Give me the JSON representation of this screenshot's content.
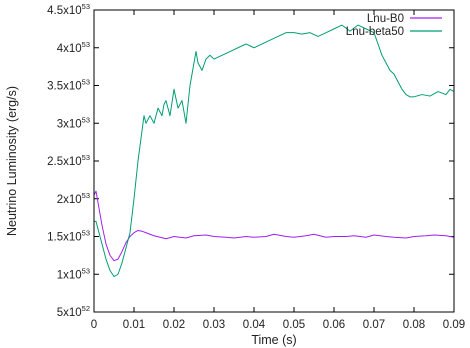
{
  "chart_data": {
    "type": "line",
    "xlabel": "Time (s)",
    "ylabel": "Neutrino Luminosity (erg/s)",
    "xlim": [
      0,
      0.09
    ],
    "ylim": [
      5e+52,
      4.5e+53
    ],
    "grid": false,
    "legend_position": "top-right",
    "x_ticks": [
      {
        "value": 0,
        "label": "0"
      },
      {
        "value": 0.01,
        "label": "0.01"
      },
      {
        "value": 0.02,
        "label": "0.02"
      },
      {
        "value": 0.03,
        "label": "0.03"
      },
      {
        "value": 0.04,
        "label": "0.04"
      },
      {
        "value": 0.05,
        "label": "0.05"
      },
      {
        "value": 0.06,
        "label": "0.06"
      },
      {
        "value": 0.07,
        "label": "0.07"
      },
      {
        "value": 0.08,
        "label": "0.08"
      },
      {
        "value": 0.09,
        "label": "0.09"
      }
    ],
    "y_ticks": [
      {
        "value": 5e+52,
        "mantissa": "5x10",
        "exponent": "52"
      },
      {
        "value": 1e+53,
        "mantissa": "1x10",
        "exponent": "53"
      },
      {
        "value": 1.5e+53,
        "mantissa": "1.5x10",
        "exponent": "53"
      },
      {
        "value": 2e+53,
        "mantissa": "2x10",
        "exponent": "53"
      },
      {
        "value": 2.5e+53,
        "mantissa": "2.5x10",
        "exponent": "53"
      },
      {
        "value": 3e+53,
        "mantissa": "3x10",
        "exponent": "53"
      },
      {
        "value": 3.5e+53,
        "mantissa": "3.5x10",
        "exponent": "53"
      },
      {
        "value": 4e+53,
        "mantissa": "4x10",
        "exponent": "53"
      },
      {
        "value": 4.5e+53,
        "mantissa": "4.5x10",
        "exponent": "53"
      }
    ],
    "series": [
      {
        "name": "Lnu-B0",
        "color": "#a020f0",
        "x": [
          0,
          0.0005,
          0.001,
          0.002,
          0.003,
          0.004,
          0.005,
          0.006,
          0.007,
          0.008,
          0.009,
          0.01,
          0.011,
          0.012,
          0.013,
          0.015,
          0.018,
          0.02,
          0.023,
          0.025,
          0.028,
          0.03,
          0.033,
          0.035,
          0.038,
          0.04,
          0.043,
          0.045,
          0.048,
          0.05,
          0.053,
          0.055,
          0.058,
          0.06,
          0.063,
          0.065,
          0.068,
          0.07,
          0.073,
          0.075,
          0.078,
          0.08,
          0.083,
          0.085,
          0.088,
          0.09
        ],
        "y": [
          2.05e+53,
          2.1e+53,
          1.95e+53,
          1.65e+53,
          1.4e+53,
          1.25e+53,
          1.18e+53,
          1.2e+53,
          1.3e+53,
          1.42e+53,
          1.5e+53,
          1.55e+53,
          1.58e+53,
          1.57e+53,
          1.55e+53,
          1.51e+53,
          1.47e+53,
          1.5e+53,
          1.48e+53,
          1.51e+53,
          1.52e+53,
          1.5e+53,
          1.49e+53,
          1.48e+53,
          1.5e+53,
          1.49e+53,
          1.5e+53,
          1.53e+53,
          1.5e+53,
          1.49e+53,
          1.51e+53,
          1.53e+53,
          1.49e+53,
          1.5e+53,
          1.5e+53,
          1.51e+53,
          1.49e+53,
          1.52e+53,
          1.5e+53,
          1.49e+53,
          1.48e+53,
          1.5e+53,
          1.51e+53,
          1.52e+53,
          1.51e+53,
          1.49e+53
        ]
      },
      {
        "name": "Lnu-beta50",
        "color": "#009e73",
        "x": [
          0,
          0.0005,
          0.001,
          0.002,
          0.003,
          0.004,
          0.005,
          0.006,
          0.007,
          0.008,
          0.009,
          0.01,
          0.011,
          0.012,
          0.0125,
          0.013,
          0.014,
          0.015,
          0.016,
          0.017,
          0.0175,
          0.018,
          0.019,
          0.02,
          0.021,
          0.022,
          0.023,
          0.024,
          0.025,
          0.0255,
          0.026,
          0.027,
          0.028,
          0.029,
          0.03,
          0.032,
          0.034,
          0.036,
          0.038,
          0.04,
          0.042,
          0.044,
          0.046,
          0.048,
          0.05,
          0.052,
          0.054,
          0.056,
          0.058,
          0.06,
          0.062,
          0.064,
          0.066,
          0.068,
          0.07,
          0.071,
          0.072,
          0.073,
          0.074,
          0.075,
          0.076,
          0.077,
          0.078,
          0.079,
          0.08,
          0.082,
          0.084,
          0.086,
          0.088,
          0.089,
          0.09
        ],
        "y": [
          1.7e+53,
          1.7e+53,
          1.6e+53,
          1.4e+53,
          1.2e+53,
          1.05e+53,
          9.7e+52,
          1e+53,
          1.15e+53,
          1.35e+53,
          1.55e+53,
          2e+53,
          2.5e+53,
          2.9e+53,
          3.1e+53,
          3e+53,
          3.1e+53,
          3e+53,
          3.2e+53,
          3.1e+53,
          3.25e+53,
          3.3e+53,
          3.1e+53,
          3.45e+53,
          3.2e+53,
          3.3e+53,
          3e+53,
          3.5e+53,
          3.8e+53,
          3.95e+53,
          3.8e+53,
          3.7e+53,
          3.85e+53,
          3.9e+53,
          3.85e+53,
          3.9e+53,
          3.95e+53,
          4e+53,
          4.05e+53,
          4e+53,
          4.05e+53,
          4.1e+53,
          4.15e+53,
          4.2e+53,
          4.2e+53,
          4.18e+53,
          4.2e+53,
          4.15e+53,
          4.2e+53,
          4.25e+53,
          4.3e+53,
          4.22e+53,
          4.3e+53,
          4.25e+53,
          4.2e+53,
          4.05e+53,
          3.9e+53,
          3.8e+53,
          3.7e+53,
          3.65e+53,
          3.55e+53,
          3.45e+53,
          3.38e+53,
          3.35e+53,
          3.35e+53,
          3.38e+53,
          3.36e+53,
          3.42e+53,
          3.38e+53,
          3.45e+53,
          3.42e+53
        ]
      }
    ]
  }
}
